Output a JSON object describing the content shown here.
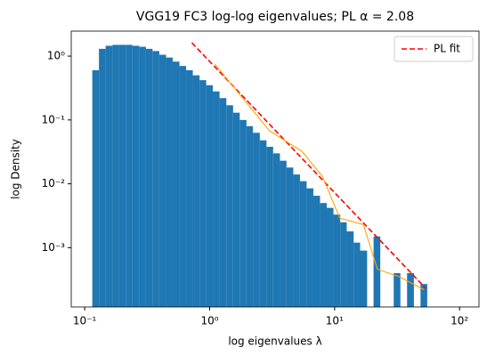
{
  "chart_data": {
    "type": "histogram",
    "title": "VGG19 FC3 log-log eigenvalues; PL α = 2.08",
    "xlabel": "log eigenvalues λ",
    "ylabel": "log Density",
    "xscale": "log",
    "yscale": "log",
    "xlim": [
      0.078,
      143
    ],
    "ylim": [
      0.000118,
      2.46
    ],
    "xticks": [
      {
        "value": 0.1,
        "label": "10⁻¹"
      },
      {
        "value": 1,
        "label": "10⁰"
      },
      {
        "value": 10,
        "label": "10¹"
      },
      {
        "value": 100,
        "label": "10²"
      }
    ],
    "yticks": [
      {
        "value": 0.001,
        "label": "10⁻³"
      },
      {
        "value": 0.01,
        "label": "10⁻²"
      },
      {
        "value": 0.1,
        "label": "10⁻¹"
      },
      {
        "value": 1,
        "label": "10⁰"
      }
    ],
    "color": "#1f77b4",
    "bins": [
      0.115,
      0.13,
      0.147,
      0.167,
      0.188,
      0.213,
      0.241,
      0.273,
      0.309,
      0.349,
      0.395,
      0.448,
      0.506,
      0.573,
      0.648,
      0.733,
      0.83,
      0.938,
      1.06,
      1.2,
      1.36,
      1.54,
      1.74,
      1.97,
      2.22,
      2.52,
      2.85,
      3.22,
      3.65,
      4.12,
      4.67,
      5.28,
      5.97,
      6.76,
      7.64,
      8.65,
      9.79,
      11.1,
      12.5,
      14.2,
      16.0,
      18.2,
      20.5,
      23.2,
      26.3,
      29.7,
      33.6,
      38.0,
      43.1,
      48.7,
      55.1
    ],
    "values": [
      0.6,
      1.3,
      1.45,
      1.5,
      1.5,
      1.5,
      1.45,
      1.4,
      1.3,
      1.2,
      1.05,
      0.95,
      0.82,
      0.7,
      0.6,
      0.5,
      0.42,
      0.35,
      0.28,
      0.22,
      0.17,
      0.13,
      0.1,
      0.08,
      0.063,
      0.048,
      0.038,
      0.03,
      0.023,
      0.018,
      0.014,
      0.011,
      0.0085,
      0.0065,
      0.005,
      0.0042,
      0.0033,
      0.0025,
      0.0018,
      0.0012,
      0.0009,
      0,
      0.0015,
      0,
      0,
      0.0004,
      0,
      0.0004,
      0,
      0.00027
    ],
    "series": [
      {
        "type": "line",
        "name": "PL fit",
        "color": "#ff0000",
        "dashed": true,
        "x": [
          0.72,
          53.7
        ],
        "values": [
          1.62,
          0.00023
        ]
      },
      {
        "type": "line",
        "color": "#ffa500",
        "dashed": false,
        "x": [
          1.1,
          3,
          5.5,
          8,
          11,
          17,
          22,
          33,
          52
        ],
        "values": [
          0.75,
          0.068,
          0.032,
          0.013,
          0.0029,
          0.0023,
          0.00046,
          0.00035,
          0.00022
        ]
      }
    ],
    "legend": "upper right"
  }
}
